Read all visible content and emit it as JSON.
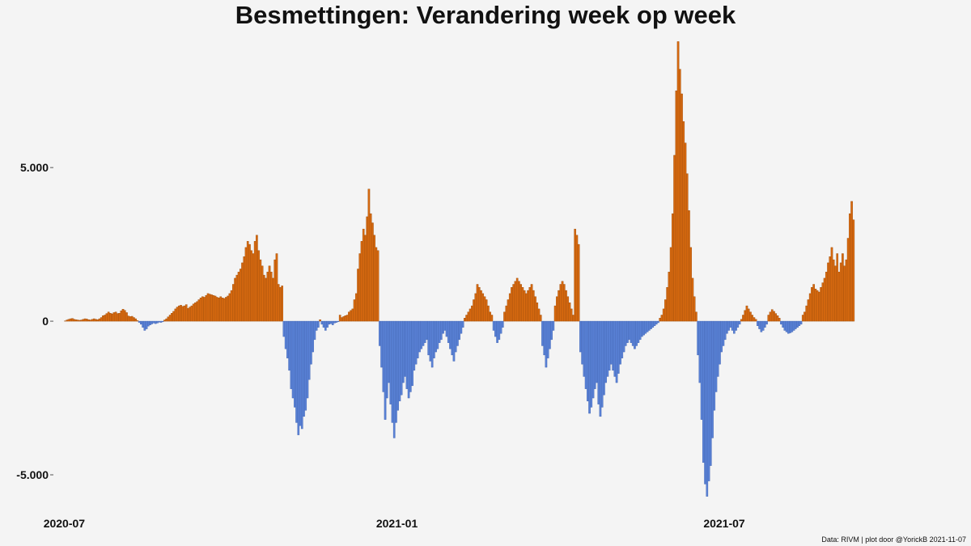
{
  "colors": {
    "positive": "#d86a10",
    "negative": "#5a82d6",
    "background": "#f4f4f4"
  },
  "chart_data": {
    "type": "bar",
    "title": "Besmettingen: Verandering week op week",
    "caption": "Data: RIVM | plot door @YorickB  2021-11-07",
    "xlabel": "",
    "ylabel": "",
    "ylim": [
      -6000,
      9400
    ],
    "xlim": [
      "2020-06-25",
      "2021-11-10"
    ],
    "grid": false,
    "legend": "none",
    "y_ticks": [
      5000,
      0,
      -5000
    ],
    "y_tick_labels": [
      "5.000",
      "0",
      "-5.000"
    ],
    "x_ticks": [
      "2020-07-01",
      "2021-01-01",
      "2021-07-01"
    ],
    "x_tick_labels": [
      "2020-07",
      "2021-01",
      "2021-07"
    ],
    "start_date": "2020-07-01",
    "values": [
      10,
      40,
      60,
      80,
      90,
      60,
      50,
      40,
      30,
      40,
      60,
      80,
      70,
      50,
      40,
      60,
      80,
      60,
      50,
      80,
      120,
      180,
      200,
      250,
      300,
      260,
      240,
      280,
      300,
      250,
      260,
      340,
      390,
      350,
      280,
      170,
      150,
      160,
      120,
      80,
      20,
      -40,
      -100,
      -200,
      -300,
      -250,
      -160,
      -120,
      -90,
      -60,
      -80,
      -60,
      -30,
      -40,
      -20,
      40,
      80,
      140,
      200,
      260,
      320,
      400,
      460,
      500,
      520,
      480,
      500,
      540,
      420,
      460,
      500,
      560,
      600,
      640,
      700,
      760,
      800,
      780,
      840,
      900,
      880,
      860,
      840,
      820,
      780,
      760,
      800,
      760,
      740,
      780,
      820,
      900,
      1000,
      1200,
      1400,
      1500,
      1600,
      1700,
      1900,
      2100,
      2400,
      2600,
      2500,
      2300,
      2200,
      2600,
      2800,
      2300,
      2000,
      1800,
      1500,
      1400,
      1600,
      1800,
      1600,
      1400,
      2000,
      2200,
      1200,
      1100,
      1150,
      -500,
      -900,
      -1200,
      -1600,
      -2200,
      -2500,
      -2800,
      -3300,
      -3700,
      -3400,
      -3500,
      -3100,
      -2900,
      -2500,
      -1900,
      -1400,
      -1000,
      -600,
      -300,
      -200,
      50,
      -100,
      -200,
      -300,
      -200,
      -100,
      -80,
      -120,
      -60,
      -40,
      -20,
      200,
      120,
      150,
      180,
      200,
      300,
      350,
      400,
      700,
      900,
      1700,
      2200,
      2600,
      3000,
      2800,
      3400,
      4300,
      3500,
      3200,
      2800,
      2400,
      2300,
      -800,
      -1500,
      -2300,
      -3200,
      -2500,
      -2000,
      -2700,
      -3300,
      -3800,
      -3300,
      -2900,
      -2600,
      -2400,
      -2000,
      -1800,
      -2200,
      -2500,
      -2300,
      -2100,
      -1600,
      -1400,
      -1200,
      -1000,
      -900,
      -800,
      -700,
      -600,
      -1100,
      -1300,
      -1500,
      -1200,
      -1000,
      -900,
      -700,
      -600,
      -400,
      -300,
      -500,
      -700,
      -900,
      -1100,
      -1300,
      -1000,
      -800,
      -600,
      -400,
      -200,
      100,
      200,
      300,
      400,
      500,
      700,
      900,
      1200,
      1100,
      1000,
      900,
      800,
      700,
      500,
      300,
      200,
      -300,
      -500,
      -700,
      -600,
      -400,
      -200,
      300,
      500,
      700,
      900,
      1100,
      1200,
      1300,
      1400,
      1300,
      1200,
      1100,
      1000,
      900,
      1000,
      1100,
      1200,
      1000,
      800,
      600,
      400,
      200,
      -800,
      -1100,
      -1500,
      -1200,
      -900,
      -600,
      -300,
      500,
      800,
      1000,
      1200,
      1300,
      1200,
      1000,
      800,
      600,
      400,
      200,
      3000,
      2800,
      2500,
      -1000,
      -1400,
      -1800,
      -2200,
      -2600,
      -3000,
      -2800,
      -2500,
      -2200,
      -2000,
      -2700,
      -3100,
      -2800,
      -2400,
      -2000,
      -1800,
      -1600,
      -1400,
      -1600,
      -1800,
      -2000,
      -1700,
      -1400,
      -1200,
      -1000,
      -800,
      -700,
      -600,
      -700,
      -800,
      -900,
      -800,
      -700,
      -600,
      -500,
      -450,
      -400,
      -350,
      -300,
      -250,
      -200,
      -150,
      -100,
      -50,
      100,
      200,
      400,
      700,
      1100,
      1600,
      2400,
      3500,
      5400,
      7500,
      9100,
      8200,
      7400,
      6500,
      5800,
      4800,
      3600,
      2400,
      1400,
      800,
      300,
      -1100,
      -2000,
      -3200,
      -4600,
      -5300,
      -5700,
      -5200,
      -4700,
      -3800,
      -2900,
      -2300,
      -1800,
      -1400,
      -1000,
      -800,
      -600,
      -400,
      -300,
      -200,
      -300,
      -400,
      -300,
      -200,
      -100,
      60,
      200,
      350,
      500,
      400,
      300,
      200,
      120,
      60,
      -150,
      -250,
      -350,
      -300,
      -200,
      -100,
      200,
      300,
      380,
      320,
      250,
      180,
      100,
      -100,
      -200,
      -300,
      -350,
      -400,
      -380,
      -350,
      -300,
      -250,
      -200,
      -150,
      -100,
      200,
      300,
      500,
      700,
      900,
      1100,
      1200,
      1050,
      1000,
      950,
      1100,
      1250,
      1400,
      1600,
      1900,
      2100,
      2400,
      2000,
      1800,
      2200,
      1600,
      1900,
      2200,
      1800,
      2000,
      2700,
      3500,
      3900,
      3300
    ]
  }
}
